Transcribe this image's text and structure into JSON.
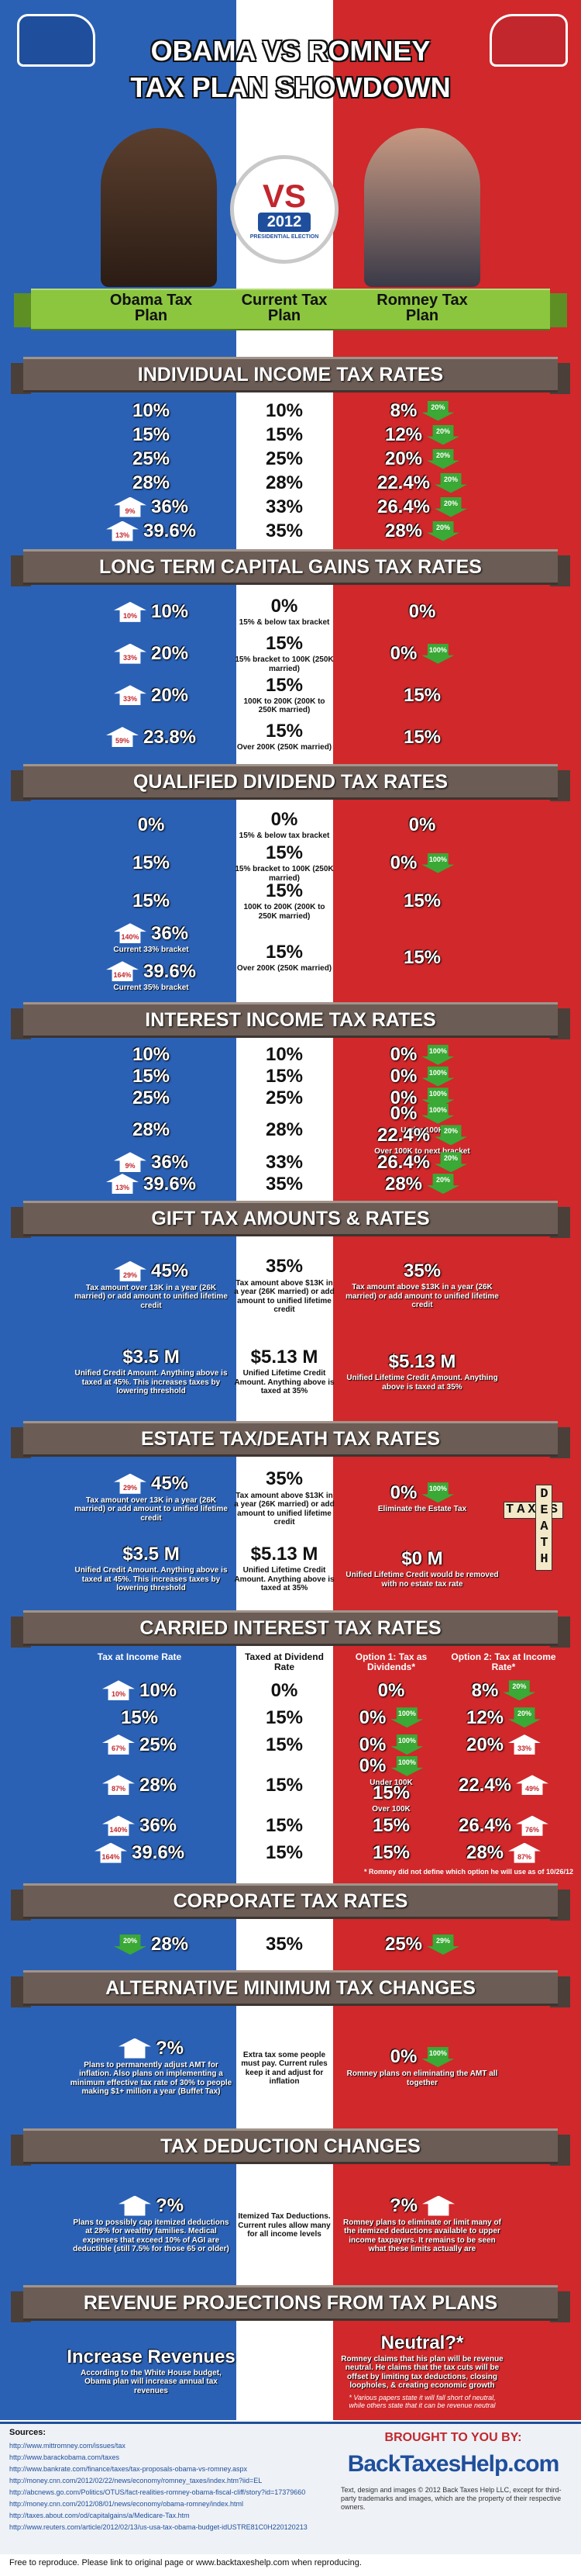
{
  "header": {
    "title_lines": [
      "OBAMA VS ROMNEY",
      "TAX PLAN SHOWDOWN"
    ],
    "badge": {
      "vs": "VS",
      "year": "2012",
      "ring": "PRESIDENTIAL ELECTION"
    }
  },
  "columns": [
    "Obama Tax Plan",
    "Current Tax Plan",
    "Romney Tax Plan"
  ],
  "sections": [
    {
      "title": "INDIVIDUAL INCOME TAX RATES",
      "rows": [
        [
          {
            "text": "10%"
          },
          {
            "text": "10%"
          },
          {
            "text": "8%",
            "change": "20%",
            "dir": "down"
          }
        ],
        [
          {
            "text": "15%"
          },
          {
            "text": "15%"
          },
          {
            "text": "12%",
            "change": "20%",
            "dir": "down"
          }
        ],
        [
          {
            "text": "25%"
          },
          {
            "text": "25%"
          },
          {
            "text": "20%",
            "change": "20%",
            "dir": "down"
          }
        ],
        [
          {
            "text": "28%"
          },
          {
            "text": "28%"
          },
          {
            "text": "22.4%",
            "change": "20%",
            "dir": "down"
          }
        ],
        [
          {
            "text": "36%",
            "change": "9%",
            "dir": "up"
          },
          {
            "text": "33%"
          },
          {
            "text": "26.4%",
            "change": "20%",
            "dir": "down"
          }
        ],
        [
          {
            "text": "39.6%",
            "change": "13%",
            "dir": "up"
          },
          {
            "text": "35%"
          },
          {
            "text": "28%",
            "change": "20%",
            "dir": "down"
          }
        ]
      ]
    },
    {
      "title": "LONG TERM CAPITAL GAINS TAX RATES",
      "rows": [
        [
          {
            "text": "10%",
            "change": "10%",
            "dir": "up"
          },
          {
            "text": "0%",
            "note": "15% & below tax bracket"
          },
          {
            "text": "0%"
          }
        ],
        [
          {
            "text": "20%",
            "change": "33%",
            "dir": "up"
          },
          {
            "text": "15%",
            "note": "15% bracket to 100K (250K married)"
          },
          {
            "text": "0%",
            "change": "100%",
            "dir": "down"
          }
        ],
        [
          {
            "text": "20%",
            "change": "33%",
            "dir": "up"
          },
          {
            "text": "15%",
            "note": "100K to 200K (200K to 250K married)"
          },
          {
            "text": "15%"
          }
        ],
        [
          {
            "text": "23.8%",
            "change": "59%",
            "dir": "up"
          },
          {
            "text": "15%",
            "note": "Over 200K (250K married)"
          },
          {
            "text": "15%"
          }
        ]
      ]
    },
    {
      "title": "QUALIFIED DIVIDEND TAX RATES",
      "rows": [
        [
          {
            "text": "0%"
          },
          {
            "text": "0%",
            "note": "15% & below tax bracket"
          },
          {
            "text": "0%"
          }
        ],
        [
          {
            "text": "15%"
          },
          {
            "text": "15%",
            "note": "15% bracket to 100K (250K married)"
          },
          {
            "text": "0%",
            "change": "100%",
            "dir": "down"
          }
        ],
        [
          {
            "text": "15%"
          },
          {
            "text": "15%",
            "note": "100K to 200K (200K to 250K married)"
          },
          {
            "text": "15%"
          }
        ],
        [
          [
            {
              "text": "36%",
              "note": "Current 33% bracket",
              "change": "140%",
              "dir": "up"
            },
            {
              "text": "39.6%",
              "note": "Current 35% bracket",
              "change": "164%",
              "dir": "up"
            }
          ],
          {
            "text": "15%",
            "note": "Over 200K (250K married)"
          },
          {
            "text": "15%"
          }
        ]
      ]
    },
    {
      "title": "INTEREST INCOME TAX RATES",
      "rows": [
        [
          {
            "text": "10%"
          },
          {
            "text": "10%"
          },
          {
            "text": "0%",
            "change": "100%",
            "dir": "down"
          }
        ],
        [
          {
            "text": "15%"
          },
          {
            "text": "15%"
          },
          {
            "text": "0%",
            "change": "100%",
            "dir": "down"
          }
        ],
        [
          {
            "text": "25%"
          },
          {
            "text": "25%"
          },
          {
            "text": "0%",
            "change": "100%",
            "dir": "down"
          }
        ],
        [
          {
            "text": "28%"
          },
          {
            "text": "28%"
          },
          [
            {
              "text": "0%",
              "note": "Under 100K",
              "change": "100%",
              "dir": "down"
            },
            {
              "text": "22.4%",
              "note": "Over 100K to next bracket",
              "change": "20%",
              "dir": "down"
            }
          ]
        ],
        [
          {
            "text": "36%",
            "change": "9%",
            "dir": "up"
          },
          {
            "text": "33%"
          },
          {
            "text": "26.4%",
            "change": "20%",
            "dir": "down"
          }
        ],
        [
          {
            "text": "39.6%",
            "change": "13%",
            "dir": "up"
          },
          {
            "text": "35%"
          },
          {
            "text": "28%",
            "change": "20%",
            "dir": "down"
          }
        ]
      ]
    },
    {
      "title": "GIFT TAX AMOUNTS & RATES",
      "rows": [
        [
          {
            "text": "45%",
            "change": "29%",
            "dir": "up",
            "note": "Tax amount over 13K in a year (26K married) or add amount to unified lifetime credit"
          },
          {
            "text": "35%",
            "note": "Tax amount above $13K in a year (26K married) or add amount to unified lifetime credit"
          },
          {
            "text": "35%",
            "note": "Tax amount above $13K in a year (26K married) or add amount to unified lifetime credit"
          }
        ],
        [
          {
            "text": "$3.5 M",
            "note": "Unified Credit Amount. Anything above is taxed at 45%. This increases taxes by lowering threshold"
          },
          {
            "text": "$5.13 M",
            "note": "Unified Lifetime Credit Amount. Anything above is taxed at 35%"
          },
          {
            "text": "$5.13 M",
            "note": "Unified Lifetime Credit Amount. Anything above is taxed at 35%"
          }
        ]
      ]
    },
    {
      "title": "ESTATE TAX/DEATH TAX RATES",
      "art_text": [
        "TAXES",
        "DEATH"
      ],
      "rows": [
        [
          {
            "text": "45%",
            "change": "29%",
            "dir": "up",
            "note": "Tax amount over 13K in a year (26K married) or add amount to unified lifetime credit"
          },
          {
            "text": "35%",
            "note": "Tax amount above $13K in a year (26K married) or add amount to unified lifetime credit"
          },
          {
            "text": "0%",
            "change": "100%",
            "dir": "down",
            "note": "Eliminate the Estate Tax"
          }
        ],
        [
          {
            "text": "$3.5 M",
            "note": "Unified Credit Amount. Anything above is taxed at 45%. This increases taxes by lowering threshold"
          },
          {
            "text": "$5.13 M",
            "note": "Unified Lifetime Credit Amount. Anything above is taxed at 35%"
          },
          {
            "text": "$0 M",
            "note": "Unified Lifetime Credit would be removed with no estate tax rate"
          }
        ]
      ]
    },
    {
      "title": "CARRIED INTEREST TAX RATES",
      "headers": [
        "Tax at Income Rate",
        "Taxed at Dividend Rate",
        "Option 1: Tax as Dividends*",
        "Option 2: Tax at Income Rate*"
      ],
      "footnote": "* Romney did not define which option he will use as of 10/26/12",
      "rows": [
        [
          {
            "text": "10%",
            "change": "10%",
            "dir": "up"
          },
          {
            "text": "0%"
          },
          {
            "text": "0%"
          },
          {
            "text": "8%",
            "change": "20%",
            "dir": "down"
          }
        ],
        [
          {
            "text": "15%"
          },
          {
            "text": "15%"
          },
          {
            "text": "0%",
            "change": "100%",
            "dir": "down"
          },
          {
            "text": "12%",
            "change": "20%",
            "dir": "down"
          }
        ],
        [
          {
            "text": "25%",
            "change": "67%",
            "dir": "up"
          },
          {
            "text": "15%"
          },
          {
            "text": "0%",
            "change": "100%",
            "dir": "down"
          },
          {
            "text": "20%",
            "change": "33%",
            "dir": "up"
          }
        ],
        [
          {
            "text": "28%",
            "change": "87%",
            "dir": "up"
          },
          {
            "text": "15%"
          },
          [
            {
              "text": "0%",
              "note": "Under 100K",
              "change": "100%",
              "dir": "down"
            },
            {
              "text": "15%",
              "note": "Over 100K"
            }
          ],
          {
            "text": "22.4%",
            "change": "49%",
            "dir": "up"
          }
        ],
        [
          {
            "text": "36%",
            "change": "140%",
            "dir": "up"
          },
          {
            "text": "15%"
          },
          {
            "text": "15%"
          },
          {
            "text": "26.4%",
            "change": "76%",
            "dir": "up"
          }
        ],
        [
          {
            "text": "39.6%",
            "change": "164%",
            "dir": "up"
          },
          {
            "text": "15%"
          },
          {
            "text": "15%"
          },
          {
            "text": "28%",
            "change": "87%",
            "dir": "up"
          }
        ]
      ]
    },
    {
      "title": "CORPORATE TAX RATES",
      "rows": [
        [
          {
            "text": "28%",
            "change": "20%",
            "dir": "down"
          },
          {
            "text": "35%"
          },
          {
            "text": "25%",
            "change": "29%",
            "dir": "down"
          }
        ]
      ]
    },
    {
      "title": "ALTERNATIVE MINIMUM TAX CHANGES",
      "rows": [
        [
          {
            "text": "?%",
            "dir": "up",
            "note": "Plans to permanently adjust AMT for inflation. Also plans on implementing a minimum effective tax rate of 30% to people making $1+ million a year (Buffet Tax)"
          },
          {
            "note": "Extra tax some people must pay. Current rules keep it and adjust for inflation"
          },
          {
            "text": "0%",
            "change": "100%",
            "dir": "down",
            "note": "Romney plans on eliminating the AMT all together"
          }
        ]
      ]
    },
    {
      "title": "TAX DEDUCTION CHANGES",
      "rows": [
        [
          {
            "text": "?%",
            "dir": "up",
            "note": "Plans to possibly cap itemized deductions at 28% for wealthy families. Medical expenses that exceed 10% of AGI are deductible (still 7.5% for those 65 or older)"
          },
          {
            "note": "Itemized Tax Deductions. Current rules allow many for all income levels"
          },
          {
            "text": "?%",
            "dir": "up",
            "note": "Romney plans to eliminate or limit many of the itemized deductions available to upper income taxpayers. It remains to be seen what these limits actually are"
          }
        ]
      ]
    },
    {
      "title": "REVENUE PROJECTIONS FROM TAX PLANS",
      "rows": [
        [
          {
            "text": "Increase Revenues",
            "note": "According to the White House budget, Obama plan will increase annual tax revenues"
          },
          null,
          {
            "text": "Neutral?*",
            "note": "Romney claims that his plan will be revenue neutral. He claims that the tax cuts will be offset by limiting tax deductions, closing loopholes, & creating economic growth",
            "footnote": "* Various papers state it will fall short of neutral, while others state that it can be revenue neutral"
          }
        ]
      ]
    }
  ],
  "footer": {
    "sources_title": "Sources:",
    "sources": [
      "http://www.mittromney.com/issues/tax",
      "http://www.barackobama.com/taxes",
      "http://www.bankrate.com/finance/taxes/tax-proposals-obama-vs-romney.aspx",
      "http://money.cnn.com/2012/02/22/news/economy/romney_taxes/index.htm?iid=EL",
      "http://abcnews.go.com/Politics/OTUS/fact-realities-romney-obama-fiscal-cliff/story?id=17379660",
      "http://money.cnn.com/2012/08/01/news/economy/obama-romney/index.html",
      "http://taxes.about.com/od/capitalgains/a/Medicare-Tax.htm",
      "http://www.reuters.com/article/2012/02/13/us-usa-tax-obama-budget-idUSTRE81C0H220120213"
    ],
    "brought": "BROUGHT TO YOU BY:",
    "brand": "BackTaxesHelp.com",
    "copyright": "Text, design and images © 2012 Back Taxes Help LLC, except for third-party trademarks and images, which are the property of their respective owners.",
    "reproduce": "Free to reproduce. Please link to original page or www.backtaxeshelp.com when reproducing."
  }
}
